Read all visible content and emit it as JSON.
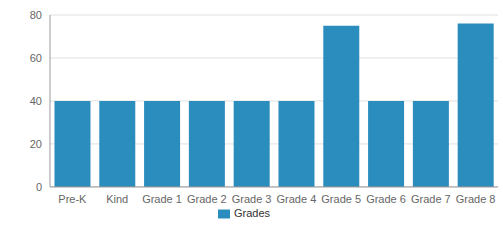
{
  "chart_data": {
    "type": "bar",
    "categories": [
      "Pre-K",
      "Kind",
      "Grade 1",
      "Grade 2",
      "Grade 3",
      "Grade 4",
      "Grade 5",
      "Grade 6",
      "Grade 7",
      "Grade 8"
    ],
    "series": [
      {
        "name": "Grades",
        "color": "#2b8cbe",
        "values": [
          40,
          40,
          40,
          40,
          40,
          40,
          75,
          40,
          40,
          76
        ]
      }
    ],
    "ylim": [
      0,
      80
    ],
    "yticks": [
      0,
      20,
      40,
      60,
      80
    ],
    "grid": true,
    "legend": "bottom"
  }
}
